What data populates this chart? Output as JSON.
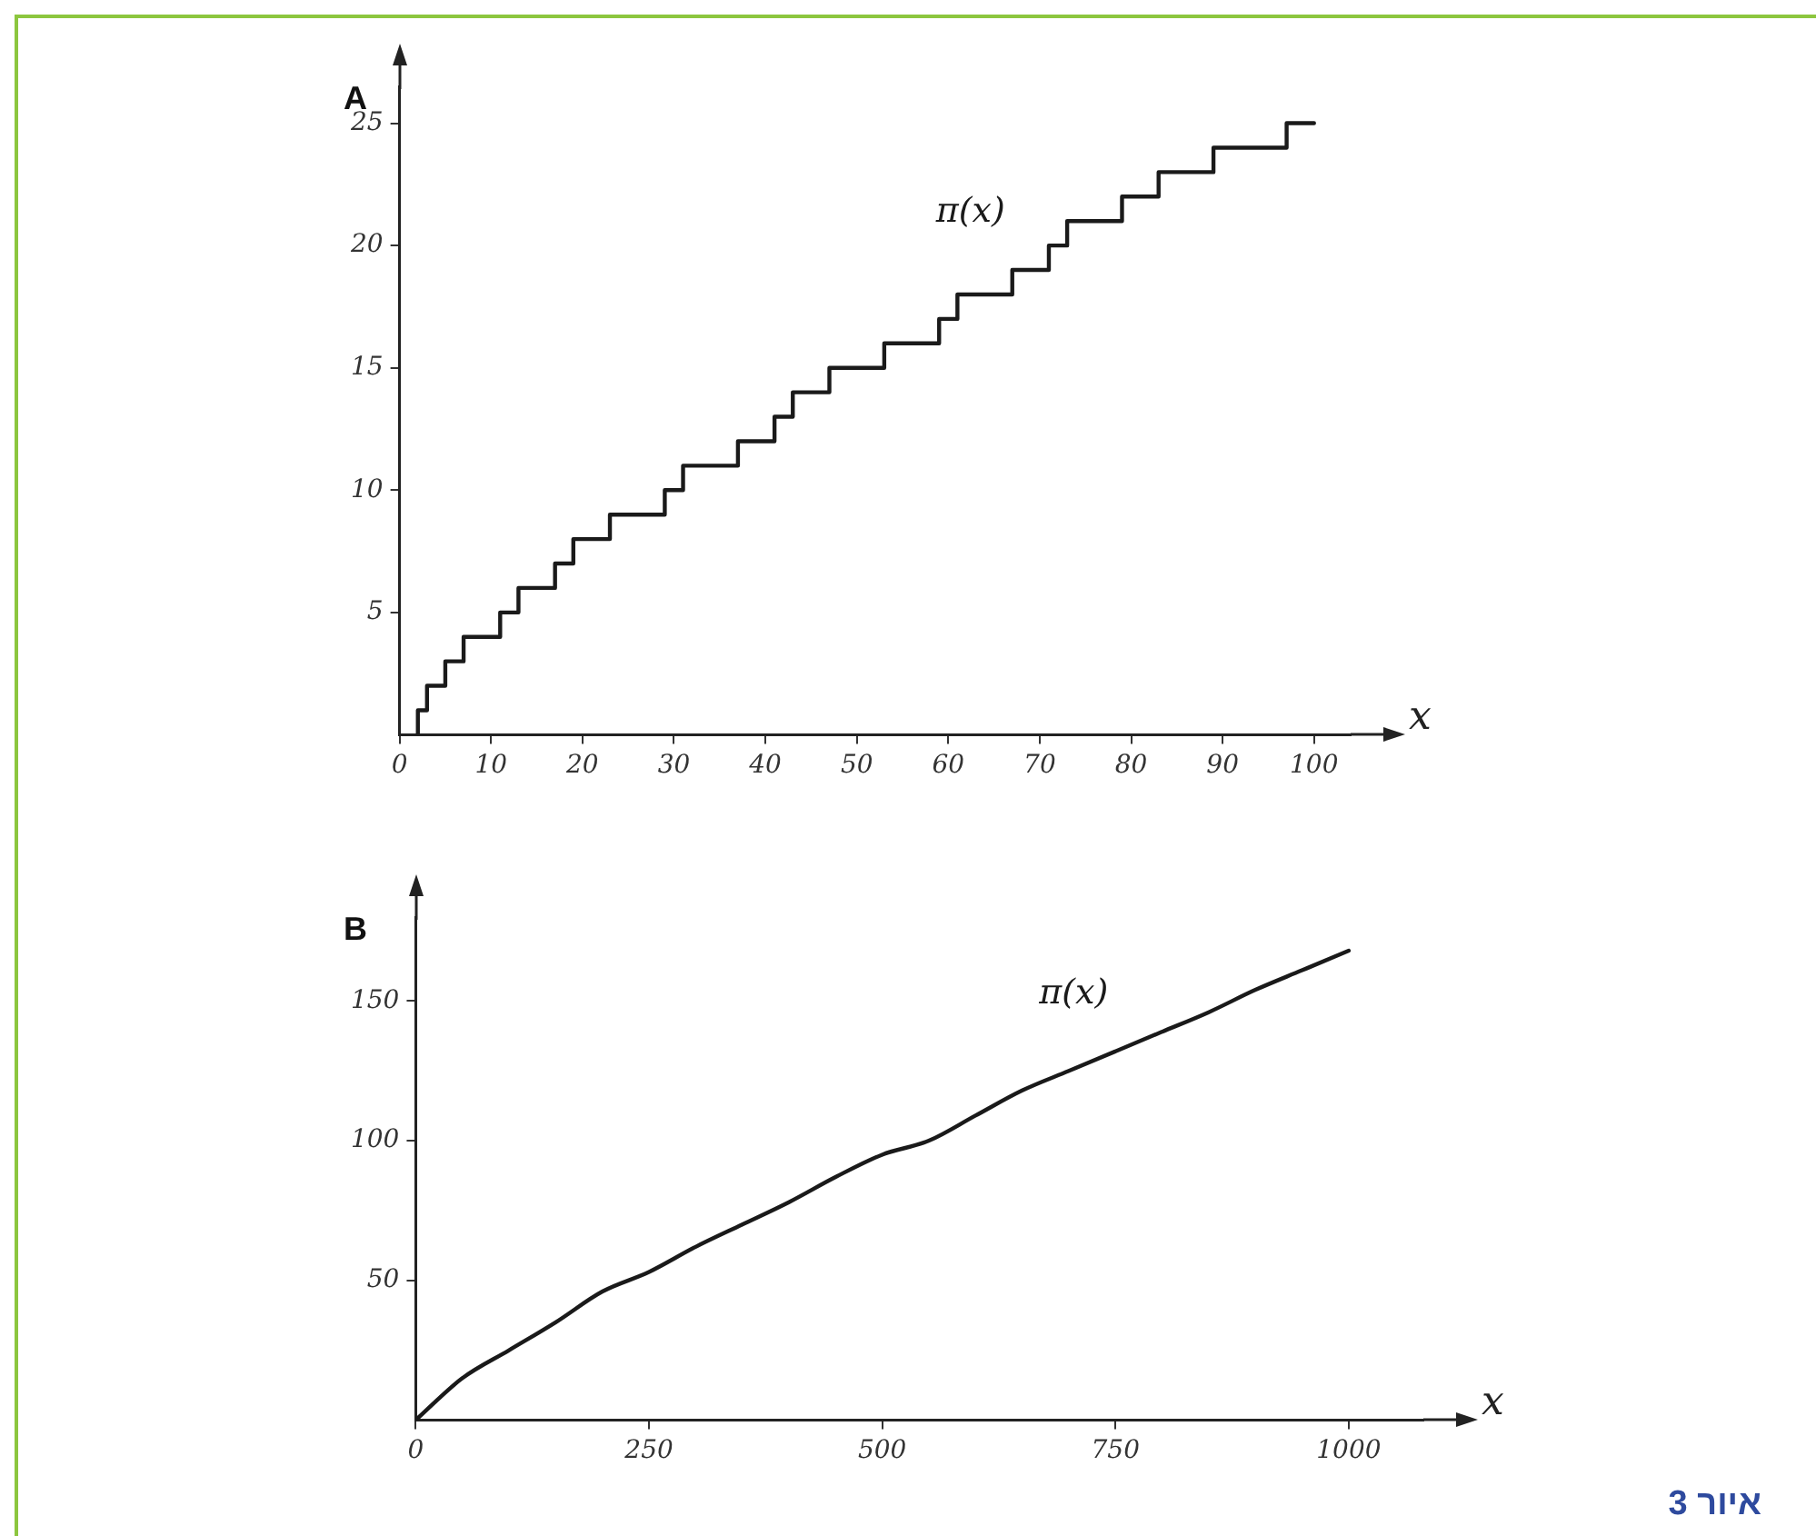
{
  "chart_data": [
    {
      "type": "step",
      "title": "A",
      "xlabel": "x",
      "x": [
        2,
        2,
        3,
        5,
        7,
        11,
        13,
        17,
        19,
        23,
        29,
        31,
        37,
        41,
        43,
        47,
        53,
        59,
        61,
        67,
        71,
        73,
        79,
        83,
        89,
        97,
        100
      ],
      "series": [
        {
          "name": "π(x)",
          "color": "#1a1a1a",
          "values": [
            0,
            1,
            2,
            3,
            4,
            5,
            6,
            7,
            8,
            9,
            10,
            11,
            12,
            13,
            14,
            15,
            16,
            17,
            18,
            19,
            20,
            21,
            22,
            23,
            24,
            25,
            25
          ]
        }
      ],
      "xlim": [
        0,
        104
      ],
      "ylim": [
        0,
        26.5
      ],
      "xticks": [
        0,
        10,
        20,
        30,
        40,
        50,
        60,
        70,
        80,
        90,
        100
      ],
      "yticks": [
        5,
        10,
        15,
        20,
        25
      ],
      "grid": false,
      "legend": false
    },
    {
      "type": "line",
      "title": "B",
      "xlabel": "x",
      "x": [
        0,
        50,
        100,
        150,
        200,
        250,
        300,
        350,
        400,
        450,
        500,
        550,
        600,
        650,
        700,
        750,
        800,
        850,
        900,
        950,
        1000
      ],
      "series": [
        {
          "name": "π(x)",
          "color": "#1a1a1a",
          "values": [
            0,
            15,
            25,
            35,
            46,
            53,
            62,
            70,
            78,
            87,
            95,
            100,
            109,
            118,
            125,
            132,
            139,
            146,
            154,
            161,
            168
          ]
        }
      ],
      "xlim": [
        0,
        1080
      ],
      "ylim": [
        0,
        180
      ],
      "xticks": [
        0,
        250,
        500,
        750,
        1000
      ],
      "yticks": [
        50,
        100,
        150
      ],
      "grid": false,
      "legend": false,
      "annotations": [
        "איור 3"
      ]
    }
  ]
}
